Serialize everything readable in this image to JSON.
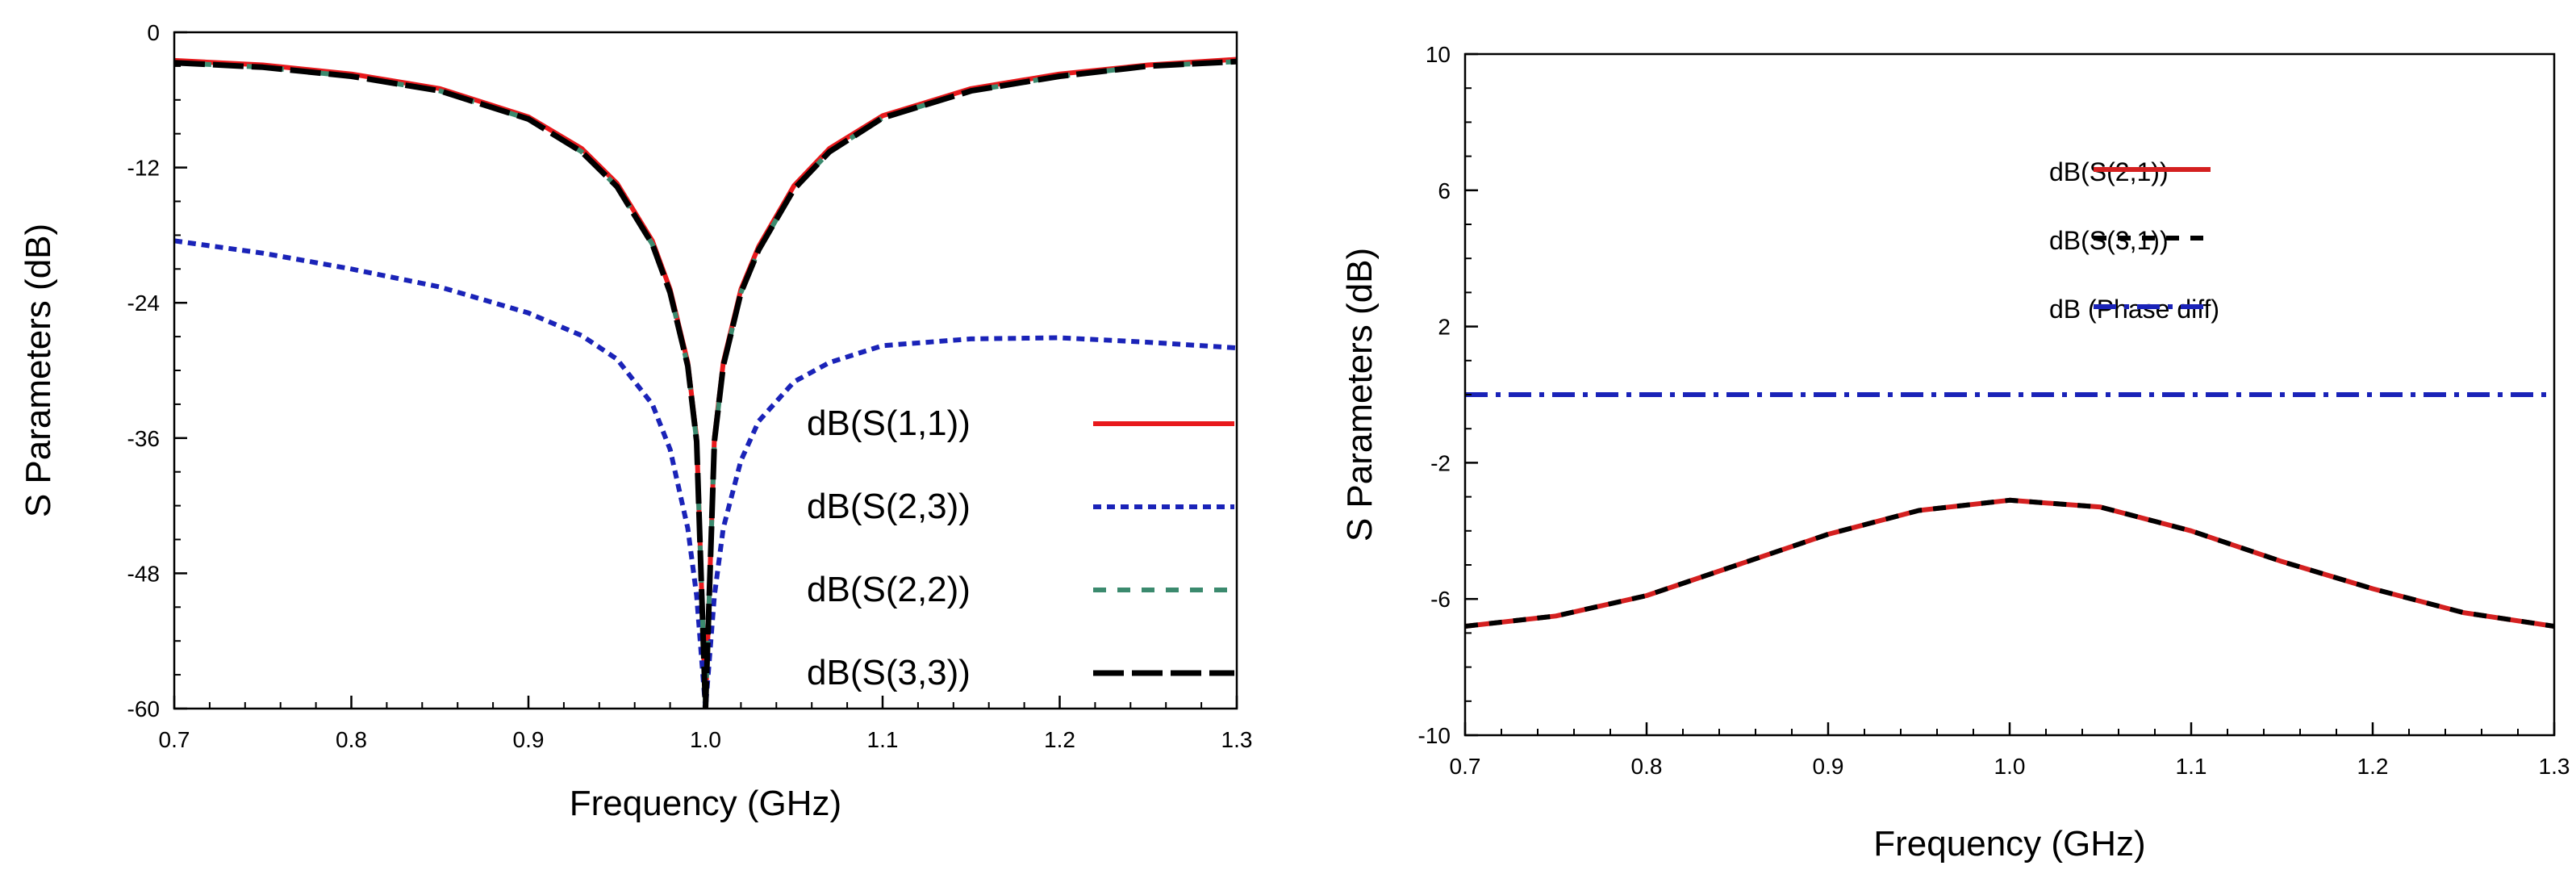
{
  "chart_data": [
    {
      "type": "line",
      "xlabel": "Frequency (GHz)",
      "ylabel": "S Parameters (dB)",
      "xlim": [
        0.7,
        1.3
      ],
      "ylim": [
        -60,
        0
      ],
      "xticks": [
        "0.7",
        "0.8",
        "0.9",
        "1.0",
        "1.1",
        "1.2",
        "1.3"
      ],
      "yticks": [
        "0",
        "-12",
        "-24",
        "-36",
        "-48",
        "-60"
      ],
      "legend_position": "bottom-right",
      "grid": false,
      "x": [
        0.7,
        0.75,
        0.8,
        0.85,
        0.9,
        0.93,
        0.95,
        0.97,
        0.98,
        0.99,
        0.995,
        1.0,
        1.005,
        1.01,
        1.02,
        1.03,
        1.05,
        1.07,
        1.1,
        1.15,
        1.2,
        1.25,
        1.3
      ],
      "series": [
        {
          "name": "dB(S(1,1))",
          "color": "#e8191c",
          "dash": "solid",
          "values": [
            -2.5,
            -2.9,
            -3.7,
            -5.0,
            -7.5,
            -10.3,
            -13.4,
            -18.5,
            -22.8,
            -29.3,
            -36.0,
            -60,
            -36.0,
            -29.3,
            -22.8,
            -19.0,
            -13.6,
            -10.3,
            -7.4,
            -5.0,
            -3.7,
            -2.9,
            -2.4
          ]
        },
        {
          "name": "dB(S(2,3))",
          "color": "#1a23b8",
          "dash": "dotted",
          "values": [
            -18.5,
            -19.6,
            -21.0,
            -22.6,
            -24.9,
            -26.9,
            -29.0,
            -33.0,
            -37.0,
            -44.0,
            -50.0,
            -60,
            -50.0,
            -44.0,
            -38.0,
            -34.5,
            -31.0,
            -29.3,
            -27.8,
            -27.2,
            -27.1,
            -27.5,
            -28.0
          ]
        },
        {
          "name": "dB(S(2,2))",
          "color": "#3b8a6e",
          "dash": "dashed",
          "values": [
            -2.7,
            -3.1,
            -3.9,
            -5.2,
            -7.7,
            -10.6,
            -13.7,
            -18.8,
            -23.1,
            -29.6,
            -36.3,
            -60,
            -36.3,
            -29.6,
            -23.1,
            -19.3,
            -13.9,
            -10.6,
            -7.6,
            -5.2,
            -3.9,
            -3.0,
            -2.6
          ]
        },
        {
          "name": "dB(S(3,3))",
          "color": "#000000",
          "dash": "longdash",
          "values": [
            -2.7,
            -3.1,
            -3.9,
            -5.2,
            -7.7,
            -10.6,
            -13.7,
            -18.8,
            -23.1,
            -29.6,
            -36.3,
            -60,
            -36.3,
            -29.6,
            -23.1,
            -19.3,
            -13.9,
            -10.6,
            -7.6,
            -5.2,
            -3.9,
            -3.0,
            -2.6
          ]
        }
      ]
    },
    {
      "type": "line",
      "xlabel": "Frequency (GHz)",
      "ylabel": "S Parameters (dB)",
      "xlim": [
        0.7,
        1.3
      ],
      "ylim": [
        -10,
        10
      ],
      "xticks": [
        "0.7",
        "0.8",
        "0.9",
        "1.0",
        "1.1",
        "1.2",
        "1.3"
      ],
      "yticks": [
        "10",
        "6",
        "2",
        "-2",
        "-6",
        "-10"
      ],
      "legend_position": "top-center",
      "grid": false,
      "x": [
        0.7,
        0.75,
        0.8,
        0.85,
        0.9,
        0.95,
        1.0,
        1.05,
        1.1,
        1.15,
        1.2,
        1.25,
        1.3
      ],
      "series": [
        {
          "name": "dB(S(2,1))",
          "color": "#d42020",
          "dash": "solid",
          "values": [
            -6.8,
            -6.5,
            -5.9,
            -5.0,
            -4.1,
            -3.4,
            -3.1,
            -3.3,
            -4.0,
            -4.9,
            -5.7,
            -6.4,
            -6.8
          ]
        },
        {
          "name": "dB(S(3,1))",
          "color": "#000000",
          "dash": "dashed",
          "values": [
            -6.8,
            -6.5,
            -5.9,
            -5.0,
            -4.1,
            -3.4,
            -3.1,
            -3.3,
            -4.0,
            -4.9,
            -5.7,
            -6.4,
            -6.8
          ]
        },
        {
          "name": "dB (Phase diff)",
          "color": "#1a23b8",
          "dash": "dashdot",
          "values": [
            0.0,
            0.0,
            0.0,
            0.0,
            0.0,
            0.0,
            0.0,
            0.0,
            0.0,
            0.0,
            0.0,
            0.0,
            0.0
          ]
        }
      ]
    }
  ]
}
